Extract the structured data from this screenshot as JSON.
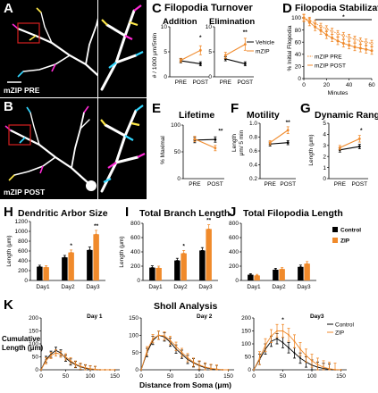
{
  "panel_labels": {
    "A": "A",
    "B": "B",
    "C": "C",
    "D": "D",
    "E": "E",
    "F": "F",
    "G": "G",
    "H": "H",
    "I": "I",
    "J": "J",
    "K": "K"
  },
  "micrographs": {
    "pre_label": "mZIP PRE",
    "post_label": "mZIP POST"
  },
  "sholl_title": "Sholl Analysis",
  "sholl_xlabel": "Distance from Soma (μm)",
  "sholl_ylabel_1": "Cumulative",
  "sholl_ylabel_2": "Length (μm)",
  "colors": {
    "vehicle": "#000000",
    "zip": "#f08a2b",
    "star": "#000000"
  },
  "chart_data": [
    {
      "id": "C",
      "type": "line",
      "title": "Filopodia Turnover",
      "subtitles": [
        "Addition",
        "Elimination"
      ],
      "ylabel": "# / 1000 μm/5min",
      "ylim": [
        0,
        10
      ],
      "yticks": [
        "0",
        "5",
        "10"
      ],
      "groups": [
        {
          "name": "Addition",
          "categories": [
            "PRE",
            "POST"
          ],
          "series": [
            {
              "name": "Vehicle",
              "values": [
                3.2,
                2.6
              ],
              "err": [
                0.4,
                0.4
              ]
            },
            {
              "name": "mZIP",
              "values": [
                3.3,
                5.3
              ],
              "err": [
                0.4,
                0.9
              ]
            }
          ],
          "annotation": "*"
        },
        {
          "name": "Elimination",
          "categories": [
            "PRE",
            "POST"
          ],
          "series": [
            {
              "name": "Vehicle",
              "values": [
                3.6,
                2.6
              ],
              "err": [
                0.4,
                0.4
              ]
            },
            {
              "name": "mZIP",
              "values": [
                4.3,
                6.5
              ],
              "err": [
                0.6,
                1.2
              ]
            }
          ],
          "annotation": "**"
        }
      ],
      "legend": [
        "Vehicle",
        "mZIP"
      ]
    },
    {
      "id": "D",
      "type": "line",
      "title": "Filopodia Stabilization",
      "xlabel": "Minutes",
      "ylabel": "% Initial Filopodia",
      "ylim": [
        0,
        100
      ],
      "xlim": [
        0,
        60
      ],
      "yticks": [
        "0",
        "20",
        "40",
        "60",
        "80",
        "100"
      ],
      "xticks": [
        "0",
        "20",
        "40",
        "60"
      ],
      "x": [
        0,
        5,
        10,
        15,
        20,
        25,
        30,
        35,
        40,
        45,
        50,
        55,
        60
      ],
      "series": [
        {
          "name": "mZIP PRE",
          "values": [
            100,
            96,
            91,
            86,
            82,
            78,
            74,
            71,
            68,
            65,
            62,
            60,
            58
          ],
          "err": 5
        },
        {
          "name": "mZIP POST",
          "values": [
            100,
            93,
            85,
            79,
            72,
            67,
            62,
            58,
            55,
            52,
            50,
            48,
            46
          ],
          "err": 6
        }
      ],
      "annotation": "*"
    },
    {
      "id": "E",
      "type": "line",
      "title": "Lifetime",
      "ylabel": "% Maximal",
      "ylim": [
        0,
        100
      ],
      "yticks": [
        "0",
        "50",
        "100"
      ],
      "categories": [
        "PRE",
        "POST"
      ],
      "series": [
        {
          "name": "Vehicle",
          "values": [
            72,
            73
          ],
          "err": [
            5,
            5
          ]
        },
        {
          "name": "mZIP",
          "values": [
            74,
            57
          ],
          "err": [
            5,
            5
          ]
        }
      ],
      "annotation": "**"
    },
    {
      "id": "F",
      "type": "line",
      "title": "Motility",
      "ylabel": "Length μm/ 5 min",
      "ylim": [
        0.2,
        1.0
      ],
      "yticks": [
        "0.2",
        "0.4",
        "0.6",
        "0.8",
        "1.0"
      ],
      "categories": [
        "PRE",
        "POST"
      ],
      "series": [
        {
          "name": "Vehicle",
          "values": [
            0.7,
            0.72
          ],
          "err": [
            0.03,
            0.03
          ]
        },
        {
          "name": "mZIP",
          "values": [
            0.72,
            0.9
          ],
          "err": [
            0.03,
            0.05
          ]
        }
      ],
      "annotation": "**"
    },
    {
      "id": "G",
      "type": "line",
      "title": "Dynamic Range",
      "ylabel": "Length (μm)",
      "ylim": [
        0,
        5
      ],
      "yticks": [
        "0",
        "1",
        "2",
        "3",
        "4",
        "5"
      ],
      "categories": [
        "PRE",
        "POST"
      ],
      "series": [
        {
          "name": "Vehicle",
          "values": [
            2.6,
            2.9
          ],
          "err": [
            0.2,
            0.2
          ]
        },
        {
          "name": "mZIP",
          "values": [
            2.8,
            3.6
          ],
          "err": [
            0.2,
            0.3
          ]
        }
      ],
      "annotation": "*"
    },
    {
      "id": "H",
      "type": "bar",
      "title": "Dendritic Arbor Size",
      "ylabel": "Length (μm)",
      "ylim": [
        0,
        1200
      ],
      "yticks": [
        "0",
        "200",
        "400",
        "600",
        "800",
        "1000",
        "1200"
      ],
      "categories": [
        "Day1",
        "Day2",
        "Day3"
      ],
      "series": [
        {
          "name": "Control",
          "values": [
            280,
            470,
            620
          ],
          "err": [
            30,
            40,
            60
          ]
        },
        {
          "name": "ZIP",
          "values": [
            270,
            570,
            940
          ],
          "err": [
            30,
            50,
            80
          ]
        }
      ],
      "annotations": [
        "",
        "*",
        "**"
      ]
    },
    {
      "id": "I",
      "type": "bar",
      "title": "Total Branch Length",
      "ylabel": "Length (μm)",
      "ylim": [
        0,
        800
      ],
      "yticks": [
        "0",
        "200",
        "400",
        "600",
        "800"
      ],
      "categories": [
        "Day1",
        "Day2",
        "Day3"
      ],
      "series": [
        {
          "name": "Control",
          "values": [
            180,
            280,
            420
          ],
          "err": [
            25,
            30,
            40
          ]
        },
        {
          "name": "ZIP",
          "values": [
            175,
            380,
            720
          ],
          "err": [
            25,
            40,
            60
          ]
        }
      ],
      "annotations": [
        "",
        "*",
        "**"
      ]
    },
    {
      "id": "J",
      "type": "bar",
      "title": "Total Filopodia Length",
      "ylim": [
        0,
        800
      ],
      "yticks": [
        "0",
        "200",
        "400",
        "600",
        "800"
      ],
      "categories": [
        "Day1",
        "Day2",
        "Day3"
      ],
      "series": [
        {
          "name": "Control",
          "values": [
            80,
            150,
            190
          ],
          "err": [
            15,
            20,
            25
          ]
        },
        {
          "name": "ZIP",
          "values": [
            70,
            160,
            235
          ],
          "err": [
            15,
            20,
            30
          ]
        }
      ],
      "annotations": [
        "",
        "",
        ""
      ],
      "legend": [
        "Control",
        "ZIP"
      ]
    },
    {
      "id": "K",
      "type": "line",
      "title": "Sholl Analysis",
      "xlabel": "Distance from Soma (μm)",
      "ylabel": "Cumulative Length (μm)",
      "subplots": [
        {
          "title": "Day 1",
          "xlim": [
            0,
            160
          ],
          "ylim": [
            0,
            200
          ],
          "yticks": [
            "0",
            "50",
            "100",
            "150",
            "200"
          ],
          "xticks": [
            "0",
            "50",
            "100",
            "150"
          ],
          "x": [
            0,
            10,
            20,
            30,
            40,
            50,
            60,
            70,
            80,
            90,
            100,
            110,
            120,
            130,
            140,
            150
          ],
          "series": [
            {
              "name": "Control",
              "values": [
                0,
                40,
                60,
                75,
                65,
                45,
                30,
                20,
                12,
                6,
                3,
                1,
                0,
                0,
                0,
                0
              ],
              "err": 12
            },
            {
              "name": "ZIP",
              "values": [
                0,
                35,
                55,
                65,
                60,
                50,
                35,
                22,
                14,
                8,
                4,
                2,
                0,
                0,
                0,
                0
              ],
              "err": 12
            }
          ]
        },
        {
          "title": "Day 2",
          "xlim": [
            0,
            160
          ],
          "ylim": [
            0,
            150
          ],
          "yticks": [
            "0",
            "50",
            "100",
            "150"
          ],
          "xticks": [
            "0",
            "50",
            "100",
            "150"
          ],
          "x": [
            0,
            10,
            20,
            30,
            40,
            50,
            60,
            70,
            80,
            90,
            100,
            110,
            120,
            130,
            140,
            150
          ],
          "series": [
            {
              "name": "Control",
              "values": [
                0,
                50,
                85,
                100,
                95,
                80,
                60,
                45,
                30,
                20,
                12,
                6,
                3,
                1,
                0,
                0
              ],
              "err": 12
            },
            {
              "name": "ZIP",
              "values": [
                0,
                55,
                90,
                100,
                98,
                85,
                68,
                50,
                35,
                22,
                14,
                8,
                4,
                2,
                0,
                0
              ],
              "err": 12
            }
          ]
        },
        {
          "title": "Day3",
          "xlim": [
            0,
            160
          ],
          "ylim": [
            0,
            200
          ],
          "yticks": [
            "0",
            "50",
            "100",
            "150",
            "200"
          ],
          "xticks": [
            "0",
            "50",
            "100",
            "150"
          ],
          "x": [
            0,
            10,
            20,
            30,
            40,
            50,
            60,
            70,
            80,
            90,
            100,
            110,
            120,
            130,
            140,
            150
          ],
          "series": [
            {
              "name": "Control",
              "values": [
                0,
                40,
                80,
                110,
                120,
                105,
                85,
                65,
                45,
                30,
                18,
                10,
                5,
                2,
                0,
                0
              ],
              "err": 20
            },
            {
              "name": "ZIP",
              "values": [
                0,
                45,
                95,
                130,
                150,
                150,
                135,
                110,
                80,
                55,
                35,
                20,
                10,
                4,
                1,
                0
              ],
              "err": 25
            }
          ],
          "annotation": "*"
        }
      ],
      "legend": [
        "Control",
        "ZIP"
      ]
    }
  ]
}
